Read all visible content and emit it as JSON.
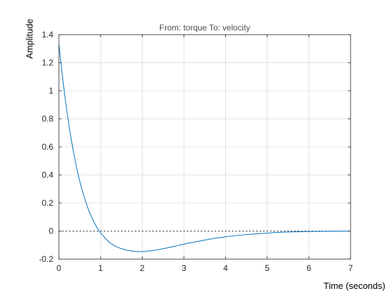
{
  "chart_data": {
    "type": "line",
    "title": "From: torque  To: velocity",
    "xlabel": "Time (seconds)",
    "ylabel": "Amplitude",
    "xlim": [
      0,
      7
    ],
    "ylim": [
      -0.2,
      1.4
    ],
    "xticks": [
      "0",
      "1",
      "2",
      "3",
      "4",
      "5",
      "6",
      "7"
    ],
    "yticks": [
      "-0.2",
      "0",
      "0.2",
      "0.4",
      "0.6",
      "0.8",
      "1",
      "1.2",
      "1.4"
    ],
    "grid": true,
    "reference_line": {
      "y": 0,
      "style": "dotted",
      "color": "#000000"
    },
    "series": [
      {
        "color": "#0072bd",
        "x": [
          0,
          0.1,
          0.2,
          0.3,
          0.4,
          0.5,
          0.6,
          0.7,
          0.8,
          0.9,
          1.0,
          1.2,
          1.4,
          1.6,
          1.8,
          1.9,
          2.0,
          2.2,
          2.5,
          2.8,
          3.0,
          3.5,
          4.0,
          4.5,
          5.0,
          5.5,
          6.0,
          6.5,
          7.0
        ],
        "y": [
          1.333,
          1.065,
          0.838,
          0.647,
          0.488,
          0.357,
          0.25,
          0.161,
          0.089,
          0.032,
          -0.012,
          -0.077,
          -0.114,
          -0.134,
          -0.144,
          -0.146,
          -0.146,
          -0.141,
          -0.126,
          -0.107,
          -0.093,
          -0.064,
          -0.041,
          -0.025,
          -0.014,
          -0.007,
          -0.003,
          -0.001,
          0.0
        ]
      }
    ]
  }
}
